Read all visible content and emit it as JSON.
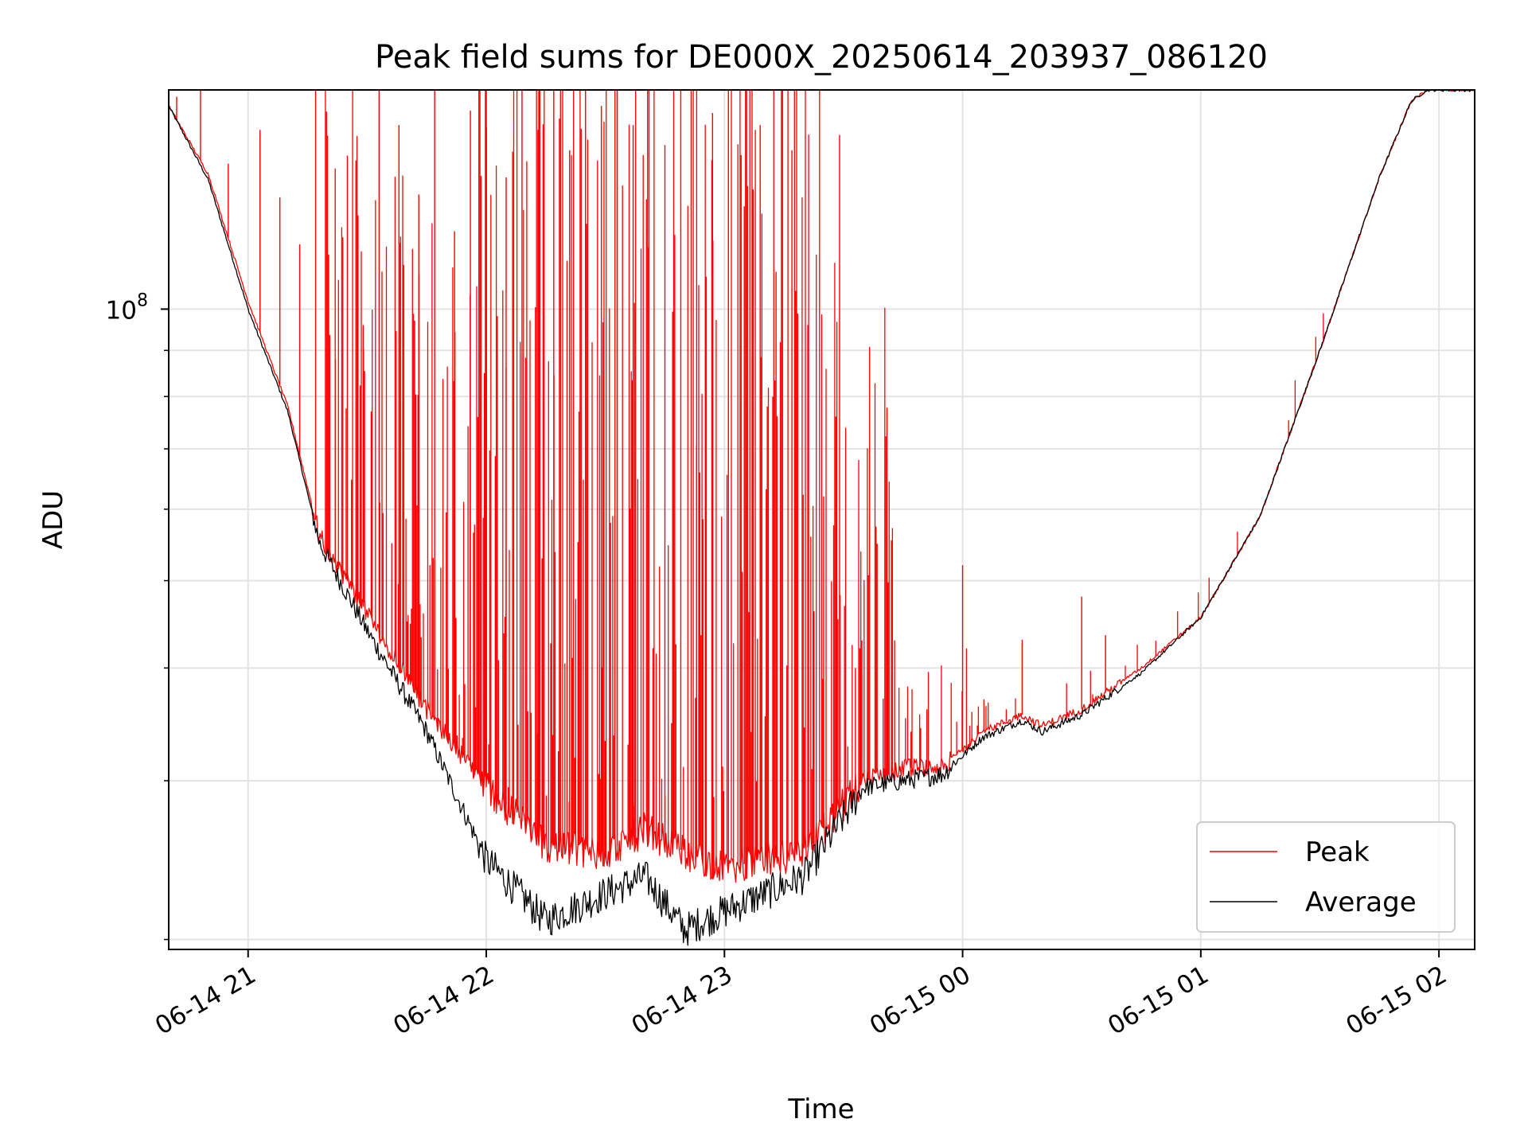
{
  "chart_data": {
    "type": "line",
    "title": "Peak field sums for DE000X_20250614_203937_086120",
    "xlabel": "Time",
    "ylabel": "ADU",
    "x_scale": "time",
    "y_scale": "log",
    "xlim": [
      "2025-06-14 20:40",
      "2025-06-15 02:09"
    ],
    "ylim": [
      19500000,
      175000000
    ],
    "x_ticks": [
      {
        "t": "2025-06-14 21:00",
        "label": "06-14 21"
      },
      {
        "t": "2025-06-14 22:00",
        "label": "06-14 22"
      },
      {
        "t": "2025-06-14 23:00",
        "label": "06-14 23"
      },
      {
        "t": "2025-06-15 00:00",
        "label": "06-15 00"
      },
      {
        "t": "2025-06-15 01:00",
        "label": "06-15 01"
      },
      {
        "t": "2025-06-15 02:00",
        "label": "06-15 02"
      }
    ],
    "y_major_ticks": [
      {
        "value": 100000000,
        "label_base": "10",
        "label_exp": "8"
      }
    ],
    "y_minor_ticks": [
      20000000,
      30000000,
      40000000,
      50000000,
      60000000,
      70000000,
      80000000,
      90000000
    ],
    "grid": true,
    "legend": {
      "placement": "lower-right"
    },
    "series": [
      {
        "name": "Peak",
        "color": "#ff0000",
        "baseline": {
          "x": [
            "2025-06-14 20:40",
            "2025-06-14 20:50",
            "2025-06-14 21:00",
            "2025-06-14 21:10",
            "2025-06-14 21:18",
            "2025-06-14 21:30",
            "2025-06-14 21:45",
            "2025-06-14 22:00",
            "2025-06-14 22:15",
            "2025-06-14 22:30",
            "2025-06-14 22:40",
            "2025-06-14 22:50",
            "2025-06-14 23:00",
            "2025-06-14 23:20",
            "2025-06-14 23:35",
            "2025-06-14 23:45",
            "2025-06-14 23:55",
            "2025-06-15 00:05",
            "2025-06-15 00:15",
            "2025-06-15 00:20",
            "2025-06-15 00:30",
            "2025-06-15 00:45",
            "2025-06-15 01:00",
            "2025-06-15 01:15",
            "2025-06-15 01:30",
            "2025-06-15 01:45",
            "2025-06-15 01:53",
            "2025-06-15 01:57",
            "2025-06-15 02:09"
          ],
          "y": [
            168000000,
            141000000,
            102000000,
            78000000,
            56000000,
            46000000,
            36000000,
            29500000,
            25500000,
            25000000,
            26500000,
            25000000,
            24000000,
            25000000,
            30000000,
            31000000,
            31000000,
            34000000,
            35500000,
            34500000,
            36000000,
            40000000,
            45500000,
            59000000,
            90000000,
            140000000,
            170000000,
            175000000,
            175000000
          ]
        },
        "spikes": [
          {
            "x": "2025-06-14 20:42",
            "y": 172000000
          },
          {
            "x": "2025-06-14 20:48",
            "y": 175000000
          },
          {
            "x": "2025-06-14 20:55",
            "y": 145000000
          },
          {
            "x": "2025-06-14 21:03",
            "y": 158000000
          },
          {
            "x": "2025-06-14 21:08",
            "y": 133000000
          },
          {
            "x": "2025-06-14 21:13",
            "y": 118000000
          },
          {
            "x": "2025-06-14 21:17",
            "y": 175000000
          },
          {
            "x": "2025-06-14 21:22",
            "y": 88000000
          },
          {
            "x": "2025-06-14 21:25",
            "y": 148000000
          },
          {
            "x": "2025-06-14 21:29",
            "y": 96000000
          },
          {
            "x": "2025-06-14 21:33",
            "y": 175000000
          },
          {
            "x": "2025-06-14 21:38",
            "y": 160000000
          },
          {
            "x": "2025-06-14 21:43",
            "y": 134000000
          },
          {
            "x": "2025-06-14 21:47",
            "y": 175000000
          },
          {
            "x": "2025-06-14 21:52",
            "y": 122000000
          },
          {
            "x": "2025-06-14 21:56",
            "y": 166000000
          },
          {
            "x": "2025-06-14 22:00",
            "y": 175000000
          },
          {
            "x": "2025-06-14 22:05",
            "y": 140000000
          },
          {
            "x": "2025-06-14 22:09",
            "y": 175000000
          },
          {
            "x": "2025-06-14 22:13",
            "y": 158000000
          },
          {
            "x": "2025-06-14 22:17",
            "y": 175000000
          },
          {
            "x": "2025-06-14 22:21",
            "y": 150000000
          },
          {
            "x": "2025-06-14 22:25",
            "y": 175000000
          },
          {
            "x": "2025-06-14 22:29",
            "y": 168000000
          },
          {
            "x": "2025-06-14 22:33",
            "y": 175000000
          },
          {
            "x": "2025-06-14 22:37",
            "y": 160000000
          },
          {
            "x": "2025-06-14 22:41",
            "y": 175000000
          },
          {
            "x": "2025-06-14 22:45",
            "y": 152000000
          },
          {
            "x": "2025-06-14 22:49",
            "y": 175000000
          },
          {
            "x": "2025-06-14 22:53",
            "y": 175000000
          },
          {
            "x": "2025-06-14 22:57",
            "y": 165000000
          },
          {
            "x": "2025-06-14 23:01",
            "y": 175000000
          },
          {
            "x": "2025-06-14 23:05",
            "y": 130000000
          },
          {
            "x": "2025-06-14 23:09",
            "y": 160000000
          },
          {
            "x": "2025-06-14 23:13",
            "y": 110000000
          },
          {
            "x": "2025-06-14 23:17",
            "y": 150000000
          },
          {
            "x": "2025-06-14 23:21",
            "y": 96000000
          },
          {
            "x": "2025-06-14 23:25",
            "y": 62000000
          },
          {
            "x": "2025-06-14 23:29",
            "y": 156000000
          },
          {
            "x": "2025-06-14 23:33",
            "y": 40000000
          },
          {
            "x": "2025-06-14 23:40",
            "y": 37000000
          },
          {
            "x": "2025-06-14 23:47",
            "y": 34000000
          },
          {
            "x": "2025-06-14 23:51",
            "y": 36000000
          },
          {
            "x": "2025-06-15 00:00",
            "y": 52000000
          },
          {
            "x": "2025-06-15 00:11",
            "y": 36000000
          },
          {
            "x": "2025-06-15 00:15",
            "y": 43000000
          },
          {
            "x": "2025-06-15 00:30",
            "y": 48000000
          },
          {
            "x": "2025-06-15 00:36",
            "y": 43500000
          }
        ]
      },
      {
        "name": "Average",
        "color": "#000000",
        "x": [
          "2025-06-14 20:40",
          "2025-06-14 20:50",
          "2025-06-14 21:00",
          "2025-06-14 21:10",
          "2025-06-14 21:18",
          "2025-06-14 21:30",
          "2025-06-14 21:45",
          "2025-06-14 22:00",
          "2025-06-14 22:15",
          "2025-06-14 22:30",
          "2025-06-14 22:40",
          "2025-06-14 22:50",
          "2025-06-14 23:00",
          "2025-06-14 23:20",
          "2025-06-14 23:35",
          "2025-06-14 23:45",
          "2025-06-14 23:55",
          "2025-06-15 00:05",
          "2025-06-15 00:15",
          "2025-06-15 00:20",
          "2025-06-15 00:30",
          "2025-06-15 00:45",
          "2025-06-15 01:00",
          "2025-06-15 01:15",
          "2025-06-15 01:30",
          "2025-06-15 01:45",
          "2025-06-15 01:53",
          "2025-06-15 01:57",
          "2025-06-15 02:09"
        ],
        "y": [
          168000000,
          139000000,
          100000000,
          77000000,
          55000000,
          44000000,
          34000000,
          24500000,
          21000000,
          22500000,
          23500000,
          20500000,
          21500000,
          23500000,
          29500000,
          30000000,
          30500000,
          33500000,
          35000000,
          34000000,
          35500000,
          39500000,
          45500000,
          59000000,
          90000000,
          140000000,
          170000000,
          175000000,
          175000000
        ]
      }
    ]
  }
}
